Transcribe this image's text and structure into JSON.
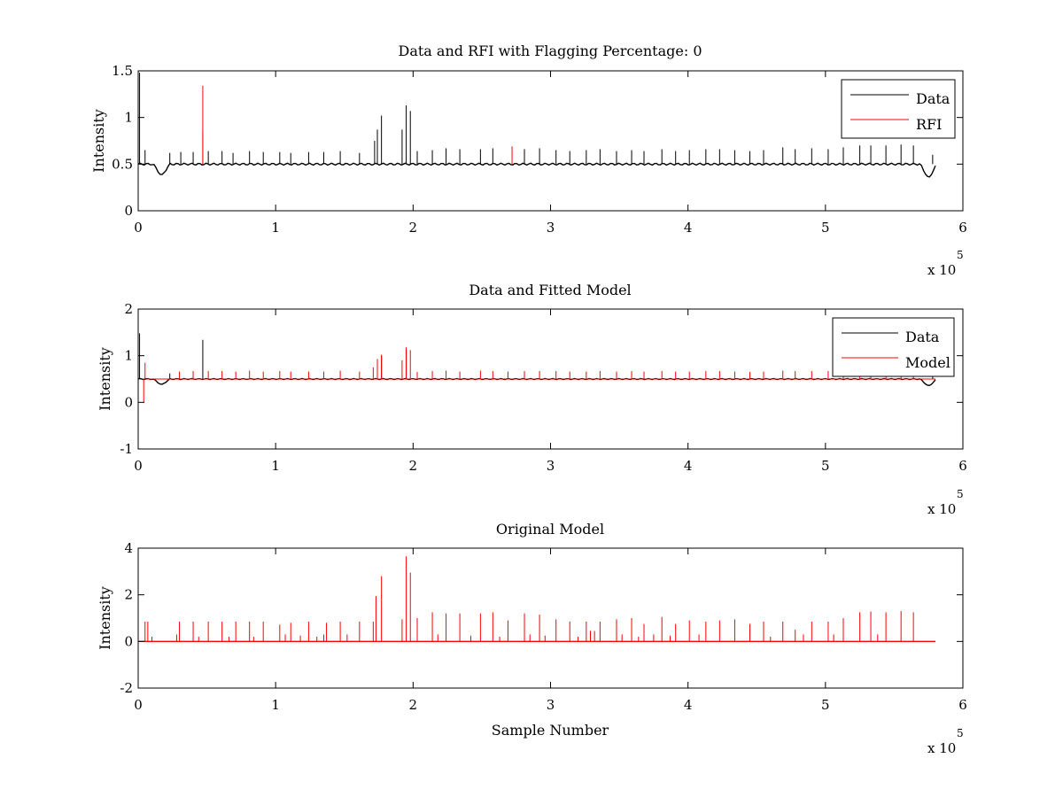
{
  "chart_data": [
    {
      "type": "line",
      "title": "Data and RFI with Flagging Percentage: 0",
      "xlabel": "",
      "ylabel": "Intensity",
      "x_multiplier": "x 10",
      "x_multiplier_exp": "5",
      "xlim": [
        0,
        6
      ],
      "ylim": [
        0,
        1.5
      ],
      "xticks": [
        0,
        1,
        2,
        3,
        4,
        5,
        6
      ],
      "yticks": [
        0,
        0.5,
        1,
        1.5
      ],
      "ytick_labels": [
        "0",
        "0.5",
        "1",
        "1.5"
      ],
      "legend": "top-right",
      "grid": false,
      "baseline": 0.5,
      "x_end": 5.8,
      "series": [
        {
          "name": "Data",
          "color": "#000000",
          "peaks": [
            [
              0.01,
              1.48
            ],
            [
              0.05,
              0.65
            ],
            [
              0.23,
              0.62
            ],
            [
              0.31,
              0.63
            ],
            [
              0.4,
              0.63
            ],
            [
              0.51,
              0.64
            ],
            [
              0.61,
              0.64
            ],
            [
              0.69,
              0.62
            ],
            [
              0.81,
              0.64
            ],
            [
              0.91,
              0.63
            ],
            [
              1.03,
              0.63
            ],
            [
              1.11,
              0.62
            ],
            [
              1.24,
              0.63
            ],
            [
              1.35,
              0.63
            ],
            [
              1.47,
              0.64
            ],
            [
              1.61,
              0.62
            ],
            [
              1.72,
              0.75
            ],
            [
              1.74,
              0.87
            ],
            [
              1.77,
              1.02
            ],
            [
              1.92,
              0.87
            ],
            [
              1.95,
              1.13
            ],
            [
              1.98,
              1.07
            ],
            [
              2.03,
              0.64
            ],
            [
              2.14,
              0.65
            ],
            [
              2.24,
              0.67
            ],
            [
              2.34,
              0.66
            ],
            [
              2.49,
              0.66
            ],
            [
              2.58,
              0.67
            ],
            [
              2.81,
              0.66
            ],
            [
              2.92,
              0.67
            ],
            [
              3.04,
              0.65
            ],
            [
              3.14,
              0.64
            ],
            [
              3.26,
              0.65
            ],
            [
              3.36,
              0.66
            ],
            [
              3.48,
              0.64
            ],
            [
              3.59,
              0.65
            ],
            [
              3.68,
              0.64
            ],
            [
              3.81,
              0.66
            ],
            [
              3.91,
              0.64
            ],
            [
              4.01,
              0.65
            ],
            [
              4.13,
              0.66
            ],
            [
              4.23,
              0.66
            ],
            [
              4.34,
              0.65
            ],
            [
              4.45,
              0.64
            ],
            [
              4.55,
              0.65
            ],
            [
              4.69,
              0.68
            ],
            [
              4.78,
              0.66
            ],
            [
              4.9,
              0.67
            ],
            [
              5.02,
              0.66
            ],
            [
              5.13,
              0.68
            ],
            [
              5.25,
              0.7
            ],
            [
              5.33,
              0.7
            ],
            [
              5.44,
              0.7
            ],
            [
              5.55,
              0.71
            ],
            [
              5.64,
              0.7
            ],
            [
              5.78,
              0.6
            ]
          ],
          "dips": [
            [
              0.17,
              0.37
            ],
            [
              5.75,
              0.34
            ]
          ]
        },
        {
          "name": "RFI",
          "color": "#ff0000",
          "peaks": [
            [
              0.47,
              1.34
            ],
            [
              0.47,
              0.85
            ],
            [
              2.72,
              0.69
            ]
          ]
        }
      ]
    },
    {
      "type": "line",
      "title": "Data and Fitted Model",
      "xlabel": "",
      "ylabel": "Intensity",
      "x_multiplier": "x 10",
      "x_multiplier_exp": "5",
      "xlim": [
        0,
        6
      ],
      "ylim": [
        -1,
        2
      ],
      "xticks": [
        0,
        1,
        2,
        3,
        4,
        5,
        6
      ],
      "yticks": [
        -1,
        0,
        1,
        2
      ],
      "ytick_labels": [
        "-1",
        "0",
        "1",
        "2"
      ],
      "legend": "top-right",
      "grid": false,
      "baseline": 0.5,
      "x_end": 5.8,
      "series": [
        {
          "name": "Data",
          "color": "#000000",
          "peaks": [
            [
              0.01,
              1.48
            ],
            [
              0.23,
              0.62
            ],
            [
              0.47,
              1.34
            ],
            [
              1.77,
              1.0
            ],
            [
              1.95,
              1.13
            ],
            [
              5.78,
              0.6
            ]
          ],
          "dips": [
            [
              0.17,
              0.37
            ],
            [
              5.75,
              0.34
            ]
          ]
        },
        {
          "name": "Model",
          "color": "#ff0000",
          "peaks": [
            [
              0.05,
              0.85
            ],
            [
              0.3,
              0.66
            ],
            [
              0.4,
              0.67
            ],
            [
              0.51,
              0.67
            ],
            [
              0.61,
              0.67
            ],
            [
              0.71,
              0.66
            ],
            [
              0.81,
              0.68
            ],
            [
              0.91,
              0.66
            ],
            [
              1.03,
              0.67
            ],
            [
              1.11,
              0.66
            ],
            [
              1.24,
              0.66
            ],
            [
              1.35,
              0.66
            ],
            [
              1.47,
              0.68
            ],
            [
              1.61,
              0.66
            ],
            [
              1.71,
              0.75
            ],
            [
              1.74,
              0.93
            ],
            [
              1.77,
              1.02
            ],
            [
              1.92,
              0.9
            ],
            [
              1.95,
              1.18
            ],
            [
              1.98,
              1.12
            ],
            [
              2.03,
              0.65
            ],
            [
              2.14,
              0.67
            ],
            [
              2.24,
              0.68
            ],
            [
              2.34,
              0.66
            ],
            [
              2.49,
              0.68
            ],
            [
              2.58,
              0.67
            ],
            [
              2.69,
              0.66
            ],
            [
              2.81,
              0.67
            ],
            [
              2.92,
              0.67
            ],
            [
              3.04,
              0.67
            ],
            [
              3.14,
              0.66
            ],
            [
              3.26,
              0.66
            ],
            [
              3.36,
              0.67
            ],
            [
              3.48,
              0.66
            ],
            [
              3.59,
              0.67
            ],
            [
              3.68,
              0.66
            ],
            [
              3.81,
              0.67
            ],
            [
              3.91,
              0.66
            ],
            [
              4.01,
              0.66
            ],
            [
              4.13,
              0.67
            ],
            [
              4.23,
              0.67
            ],
            [
              4.34,
              0.66
            ],
            [
              4.45,
              0.65
            ],
            [
              4.55,
              0.66
            ],
            [
              4.69,
              0.68
            ],
            [
              4.78,
              0.67
            ],
            [
              4.9,
              0.67
            ],
            [
              5.02,
              0.67
            ],
            [
              5.13,
              0.68
            ],
            [
              5.25,
              0.68
            ],
            [
              5.33,
              0.69
            ],
            [
              5.44,
              0.69
            ],
            [
              5.55,
              0.7
            ],
            [
              5.64,
              0.69
            ]
          ],
          "dips": [
            [
              0.04,
              0.0
            ]
          ]
        }
      ]
    },
    {
      "type": "line",
      "title": "Original Model",
      "xlabel": "Sample Number",
      "ylabel": "Intensity",
      "x_multiplier": "x 10",
      "x_multiplier_exp": "5",
      "xlim": [
        0,
        6
      ],
      "ylim": [
        -2,
        4
      ],
      "xticks": [
        0,
        1,
        2,
        3,
        4,
        5,
        6
      ],
      "yticks": [
        -2,
        0,
        2,
        4
      ],
      "ytick_labels": [
        "-2",
        "0",
        "2",
        "4"
      ],
      "legend": "none",
      "grid": false,
      "baseline": 0,
      "x_end": 5.8,
      "series": [
        {
          "name": "",
          "color": "#ff0000",
          "peaks": [
            [
              0.05,
              0.85
            ],
            [
              0.07,
              0.85
            ],
            [
              0.1,
              0.2
            ],
            [
              0.28,
              0.3
            ],
            [
              0.3,
              0.85
            ],
            [
              0.4,
              0.85
            ],
            [
              0.44,
              0.2
            ],
            [
              0.51,
              0.85
            ],
            [
              0.61,
              0.85
            ],
            [
              0.66,
              0.2
            ],
            [
              0.71,
              0.85
            ],
            [
              0.81,
              0.85
            ],
            [
              0.84,
              0.2
            ],
            [
              0.91,
              0.85
            ],
            [
              1.03,
              0.72
            ],
            [
              1.07,
              0.3
            ],
            [
              1.11,
              0.8
            ],
            [
              1.18,
              0.25
            ],
            [
              1.24,
              0.85
            ],
            [
              1.3,
              0.2
            ],
            [
              1.35,
              0.3
            ],
            [
              1.37,
              0.8
            ],
            [
              1.47,
              0.85
            ],
            [
              1.52,
              0.3
            ],
            [
              1.61,
              0.85
            ],
            [
              1.71,
              0.85
            ],
            [
              1.73,
              1.95
            ],
            [
              1.77,
              2.8
            ],
            [
              1.92,
              0.95
            ],
            [
              1.95,
              3.65
            ],
            [
              1.98,
              2.95
            ],
            [
              2.03,
              1.0
            ],
            [
              2.14,
              1.25
            ],
            [
              2.18,
              0.3
            ],
            [
              2.24,
              1.2
            ],
            [
              2.34,
              1.2
            ],
            [
              2.42,
              0.25
            ],
            [
              2.49,
              1.2
            ],
            [
              2.58,
              1.25
            ],
            [
              2.63,
              0.2
            ],
            [
              2.69,
              0.9
            ],
            [
              2.81,
              1.2
            ],
            [
              2.85,
              0.3
            ],
            [
              2.92,
              1.15
            ],
            [
              2.96,
              0.25
            ],
            [
              3.04,
              0.95
            ],
            [
              3.14,
              0.85
            ],
            [
              3.2,
              0.2
            ],
            [
              3.26,
              0.85
            ],
            [
              3.29,
              0.45
            ],
            [
              3.32,
              0.45
            ],
            [
              3.36,
              0.85
            ],
            [
              3.48,
              0.95
            ],
            [
              3.52,
              0.3
            ],
            [
              3.59,
              1.0
            ],
            [
              3.64,
              0.2
            ],
            [
              3.68,
              0.75
            ],
            [
              3.75,
              0.3
            ],
            [
              3.81,
              1.05
            ],
            [
              3.87,
              0.25
            ],
            [
              3.91,
              0.75
            ],
            [
              4.01,
              0.9
            ],
            [
              4.08,
              0.3
            ],
            [
              4.13,
              0.85
            ],
            [
              4.23,
              0.9
            ],
            [
              4.34,
              0.95
            ],
            [
              4.45,
              0.75
            ],
            [
              4.55,
              0.85
            ],
            [
              4.6,
              0.2
            ],
            [
              4.69,
              0.85
            ],
            [
              4.78,
              0.5
            ],
            [
              4.84,
              0.3
            ],
            [
              4.9,
              0.85
            ],
            [
              5.02,
              0.85
            ],
            [
              5.06,
              0.3
            ],
            [
              5.13,
              1.0
            ],
            [
              5.25,
              1.25
            ],
            [
              5.33,
              1.28
            ],
            [
              5.38,
              0.3
            ],
            [
              5.44,
              1.25
            ],
            [
              5.55,
              1.3
            ],
            [
              5.64,
              1.25
            ]
          ],
          "dips": []
        }
      ]
    }
  ]
}
